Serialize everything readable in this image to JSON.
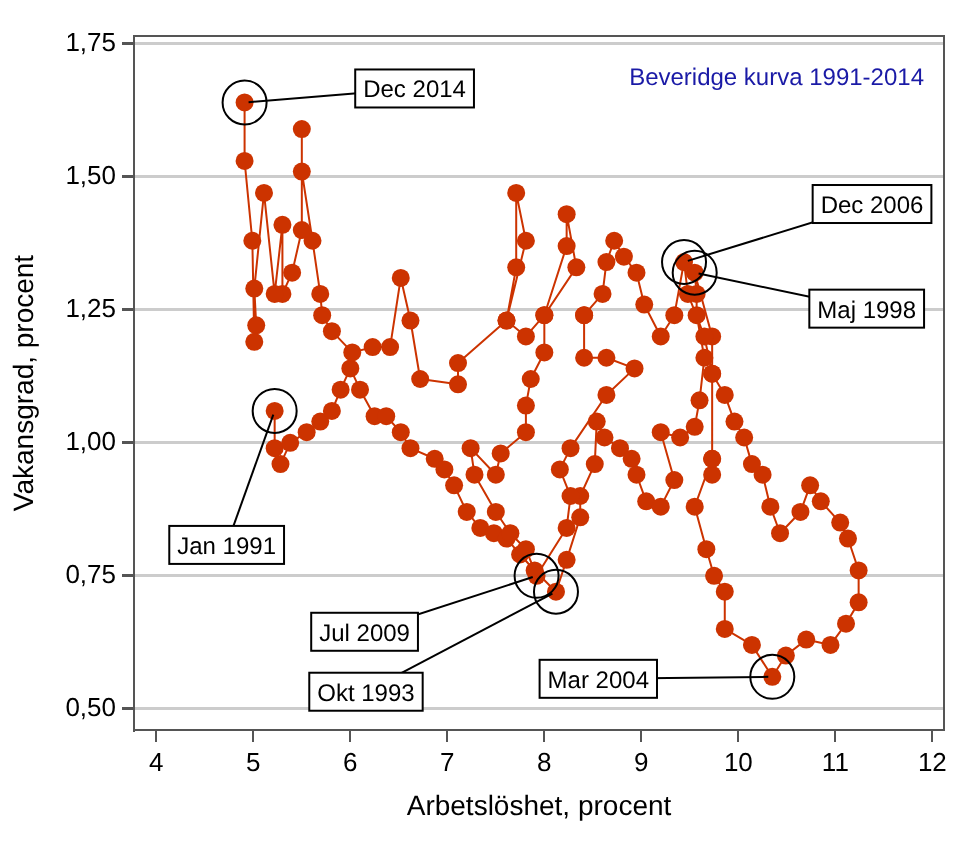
{
  "chart_data": {
    "type": "line",
    "title": "Beveridge kurva 1991-2014",
    "xlabel": "Arbetslöshet, procent",
    "ylabel": "Vakansgrad, procent",
    "marker": "circle",
    "line_style": "solid",
    "grid": "y",
    "legend": false,
    "xlim": [
      3.77,
      12.12
    ],
    "ylim": [
      0.46,
      1.765
    ],
    "xticks": [
      4,
      5,
      6,
      7,
      8,
      9,
      10,
      11,
      12
    ],
    "yticks": [
      {
        "value": 0.5,
        "label": "0,50"
      },
      {
        "value": 0.75,
        "label": "0,75"
      },
      {
        "value": 1.0,
        "label": "1,00"
      },
      {
        "value": 1.25,
        "label": "1,25"
      },
      {
        "value": 1.5,
        "label": "1,50"
      },
      {
        "value": 1.75,
        "label": "1,75"
      }
    ],
    "series": [
      {
        "color": "#cc3300",
        "x": [
          5.22,
          5.22,
          5.28,
          5.38,
          5.55,
          5.69,
          5.81,
          5.9,
          6.0,
          6.1,
          6.25,
          6.37,
          6.52,
          6.62,
          6.87,
          6.97,
          7.07,
          7.2,
          7.34,
          7.48,
          7.61,
          7.75,
          7.9,
          8.12,
          8.23,
          8.37,
          8.37,
          8.52,
          8.54,
          8.62,
          8.78,
          8.9,
          8.95,
          9.05,
          9.2,
          9.34,
          9.2,
          9.4,
          9.55,
          9.6,
          9.65,
          9.57,
          9.57,
          9.55,
          9.73,
          9.73,
          9.73,
          9.73,
          9.73,
          9.55,
          9.67,
          9.75,
          9.86,
          9.86,
          10.14,
          10.35,
          10.49,
          10.7,
          10.95,
          11.11,
          11.24,
          11.24,
          11.13,
          11.05,
          10.85,
          10.74,
          10.64,
          10.43,
          10.33,
          10.25,
          10.14,
          10.06,
          9.96,
          9.86,
          9.73,
          9.65,
          9.48,
          9.44,
          9.34,
          9.2,
          9.03,
          8.95,
          8.82,
          8.72,
          8.64,
          8.6,
          8.41,
          8.41,
          8.41,
          8.64,
          8.93,
          8.64,
          8.27,
          8.16,
          8.27,
          8.23,
          7.92,
          7.81,
          7.65,
          7.5,
          7.28,
          7.24,
          7.5,
          7.55,
          7.81,
          7.81,
          7.86,
          8.0,
          8.0,
          8.23,
          8.23,
          8.33,
          8.0,
          7.81,
          7.61,
          7.71,
          7.71,
          7.81,
          7.61,
          7.11,
          7.11,
          6.72,
          6.62,
          6.52,
          6.41,
          6.23,
          6.02,
          5.81,
          5.71,
          5.69,
          5.61,
          5.5,
          5.5,
          5.5,
          5.4,
          5.3,
          5.3,
          5.22,
          5.11,
          5.01,
          5.03,
          5.01,
          4.99,
          4.91,
          4.91
        ],
        "values": [
          1.06,
          0.99,
          0.96,
          1.0,
          1.02,
          1.04,
          1.06,
          1.1,
          1.14,
          1.1,
          1.05,
          1.05,
          1.02,
          0.99,
          0.97,
          0.95,
          0.92,
          0.87,
          0.84,
          0.83,
          0.82,
          0.79,
          0.76,
          0.72,
          0.78,
          0.86,
          0.9,
          0.96,
          1.04,
          1.01,
          0.99,
          0.97,
          0.94,
          0.89,
          0.88,
          0.93,
          1.02,
          1.01,
          1.03,
          1.08,
          1.16,
          1.24,
          1.28,
          1.32,
          1.2,
          1.13,
          0.97,
          0.94,
          0.97,
          0.88,
          0.8,
          0.75,
          0.72,
          0.65,
          0.62,
          0.56,
          0.6,
          0.63,
          0.62,
          0.66,
          0.7,
          0.76,
          0.82,
          0.85,
          0.89,
          0.92,
          0.87,
          0.83,
          0.88,
          0.94,
          0.96,
          1.01,
          1.04,
          1.09,
          1.13,
          1.2,
          1.28,
          1.34,
          1.24,
          1.2,
          1.26,
          1.32,
          1.35,
          1.38,
          1.34,
          1.28,
          1.24,
          1.24,
          1.16,
          1.16,
          1.14,
          1.09,
          0.99,
          0.95,
          0.9,
          0.84,
          0.75,
          0.8,
          0.83,
          0.87,
          0.94,
          0.99,
          0.94,
          0.98,
          1.02,
          1.07,
          1.12,
          1.17,
          1.24,
          1.37,
          1.43,
          1.33,
          1.24,
          1.2,
          1.23,
          1.33,
          1.47,
          1.38,
          1.23,
          1.15,
          1.11,
          1.12,
          1.23,
          1.31,
          1.18,
          1.18,
          1.17,
          1.21,
          1.24,
          1.28,
          1.38,
          1.51,
          1.59,
          1.4,
          1.32,
          1.28,
          1.41,
          1.28,
          1.47,
          1.29,
          1.221,
          1.19,
          1.38,
          1.53,
          1.64
        ]
      }
    ],
    "annotations": [
      {
        "text": "Dec 2014",
        "x": 4.91,
        "y": 1.64
      },
      {
        "text": "Jan 1991",
        "x": 5.22,
        "y": 1.06
      },
      {
        "text": "Jul 2009",
        "x": 7.92,
        "y": 0.75
      },
      {
        "text": "Okt 1993",
        "x": 8.12,
        "y": 0.72
      },
      {
        "text": "Mar 2004",
        "x": 10.35,
        "y": 0.56
      },
      {
        "text": "Dec 2006",
        "x": 9.44,
        "y": 1.34
      },
      {
        "text": "Maj 1998",
        "x": 9.55,
        "y": 1.32
      }
    ]
  }
}
